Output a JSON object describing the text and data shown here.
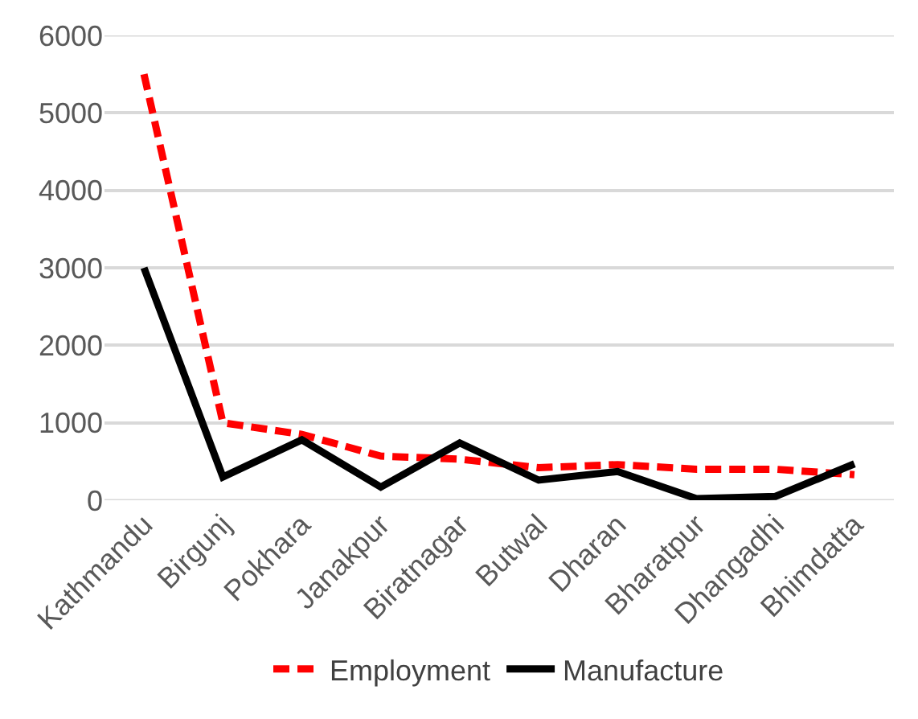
{
  "chart_data": {
    "type": "line",
    "categories": [
      "Kathmandu",
      "Birgunj",
      "Pokhara",
      "Janakpur",
      "Biratnagar",
      "Butwal",
      "Dharan",
      "Bharatpur",
      "Dhangadhi",
      "Bhimdatta"
    ],
    "series": [
      {
        "name": "Employment",
        "color": "#ff0000",
        "line_style": "dashed",
        "values": [
          5500,
          1000,
          850,
          570,
          530,
          420,
          460,
          400,
          400,
          330
        ]
      },
      {
        "name": "Manufacture",
        "color": "#000000",
        "line_style": "solid",
        "values": [
          3000,
          300,
          780,
          170,
          740,
          260,
          370,
          20,
          50,
          470
        ]
      }
    ],
    "ylim": [
      0,
      6000
    ],
    "yticks": [
      0,
      1000,
      2000,
      3000,
      4000,
      5000,
      6000
    ],
    "grid": "y",
    "legend": "bottom",
    "marker": "none"
  }
}
